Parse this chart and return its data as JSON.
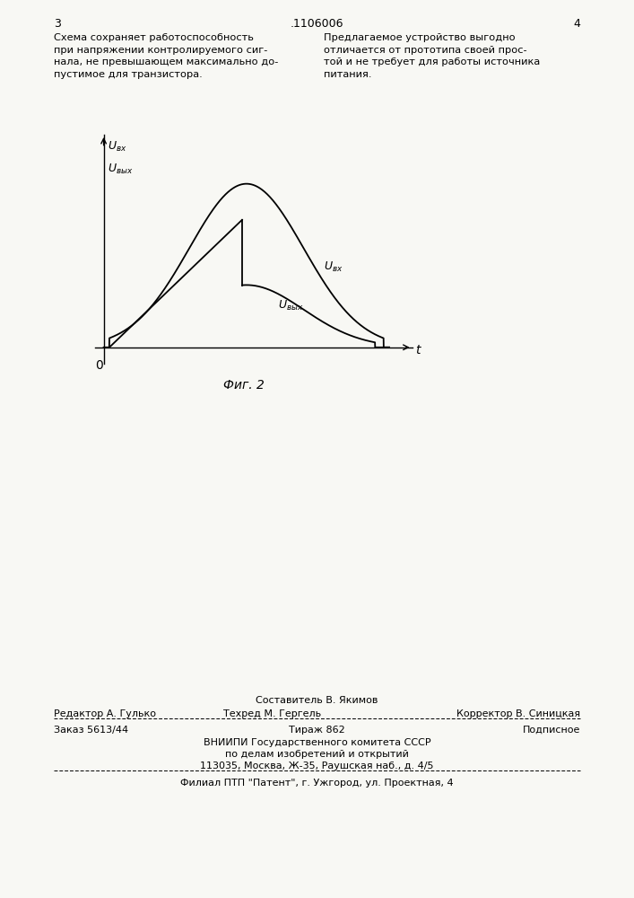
{
  "background_color": "#f8f8f4",
  "page_number_left": "3",
  "page_number_center": ".1106006",
  "page_number_right": "4",
  "text_left": "Схема сохраняет работоспособность\nпри напряжении контролируемого сиг-\nнала, не превышающем максимально до-\nпустимое для транзистора.",
  "text_right": "Предлагаемое устройство выгодно\nотличается от прототипа своей прос-\nтой и не требует для работы источника\nпитания.",
  "fig_caption": "Фиг. 2",
  "label_ubx_axis": "U вх",
  "label_uvyx_axis": "U вых",
  "label_ubx_curve": "U вх",
  "label_ubyx_curve": "U вых",
  "xlabel": "t",
  "origin_label": "0",
  "footer_sestavitel": "Составитель В. Якимов",
  "footer_redaktor": "Редактор А. Гулько",
  "footer_tehred": "Техред М. Гергель",
  "footer_korrektor": "Корректор В. Синицкая",
  "footer_zakaz": "Заказ 5613/44",
  "footer_tirazh": "Тираж 862",
  "footer_podpisnoe": "Подписное",
  "footer_vniip1": "ВНИИПИ Государственного комитета СССР",
  "footer_vniip2": "по делам изобретений и открытий",
  "footer_vniip3": "113035, Москва, Ж-35, Раушская наб., д. 4/5",
  "footer_filial": "Филиал ПТП \"Патент\", г. Ужгород, ул. Проектная, 4"
}
